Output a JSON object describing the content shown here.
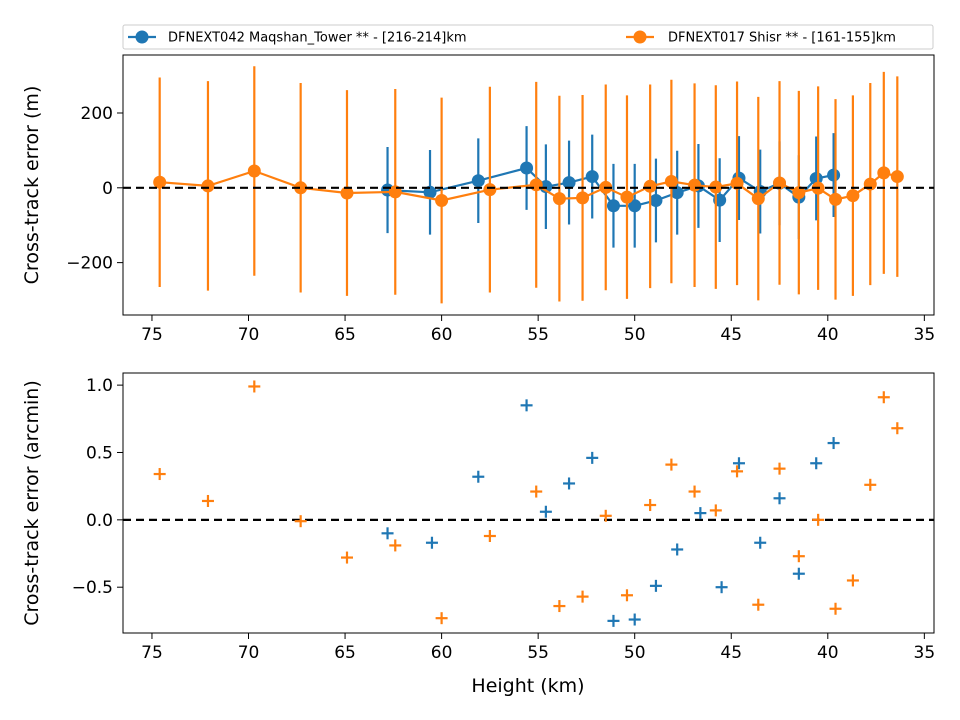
{
  "chart_data": [
    {
      "type": "line",
      "xlabel": "",
      "ylabel": "Cross-track error (m)",
      "xlim": [
        76.5,
        34.5
      ],
      "ylim": [
        -340,
        355
      ],
      "x_ticks": [
        75,
        70,
        65,
        60,
        55,
        50,
        45,
        40,
        35
      ],
      "y_ticks": [
        -200,
        0,
        200
      ],
      "y_tick_labels": [
        "−200",
        "0",
        "200"
      ],
      "reference_line": 0,
      "legend_position": "above",
      "series": [
        {
          "name": "DFNEXT042 Maqshan_Tower **  - [216-214]km",
          "color": "#1f77b4",
          "points": [
            {
              "x": 62.8,
              "y": -6,
              "err": 115
            },
            {
              "x": 60.6,
              "y": -12,
              "err": 113
            },
            {
              "x": 58.1,
              "y": 19,
              "err": 113
            },
            {
              "x": 55.6,
              "y": 53,
              "err": 112
            },
            {
              "x": 54.6,
              "y": 3,
              "err": 113
            },
            {
              "x": 53.4,
              "y": 14,
              "err": 112
            },
            {
              "x": 52.2,
              "y": 30,
              "err": 112
            },
            {
              "x": 51.1,
              "y": -48,
              "err": 112
            },
            {
              "x": 50.0,
              "y": -48,
              "err": 112
            },
            {
              "x": 48.9,
              "y": -34,
              "err": 112
            },
            {
              "x": 47.8,
              "y": -13,
              "err": 112
            },
            {
              "x": 46.7,
              "y": 5,
              "err": 112
            },
            {
              "x": 45.6,
              "y": -33,
              "err": 112
            },
            {
              "x": 44.6,
              "y": 26,
              "err": 112
            },
            {
              "x": 43.5,
              "y": -10,
              "err": 112
            },
            {
              "x": 42.5,
              "y": 12,
              "err": 112
            },
            {
              "x": 41.5,
              "y": -25,
              "err": 112
            },
            {
              "x": 40.6,
              "y": 25,
              "err": 112
            },
            {
              "x": 39.7,
              "y": 34,
              "err": 112
            }
          ]
        },
        {
          "name": "DFNEXT017 Shisr **  - [161-155]km",
          "color": "#ff7f0e",
          "points": [
            {
              "x": 74.6,
              "y": 15,
              "err": 280
            },
            {
              "x": 72.1,
              "y": 5,
              "err": 280
            },
            {
              "x": 69.7,
              "y": 45,
              "err": 280
            },
            {
              "x": 67.3,
              "y": 0,
              "err": 280
            },
            {
              "x": 64.9,
              "y": -14,
              "err": 275
            },
            {
              "x": 62.4,
              "y": -11,
              "err": 275
            },
            {
              "x": 60.0,
              "y": -34,
              "err": 275
            },
            {
              "x": 57.5,
              "y": -5,
              "err": 275
            },
            {
              "x": 55.1,
              "y": 8,
              "err": 275
            },
            {
              "x": 53.9,
              "y": -29,
              "err": 275
            },
            {
              "x": 52.7,
              "y": -27,
              "err": 275
            },
            {
              "x": 51.5,
              "y": 1,
              "err": 275
            },
            {
              "x": 50.4,
              "y": -25,
              "err": 272
            },
            {
              "x": 49.2,
              "y": 4,
              "err": 272
            },
            {
              "x": 48.1,
              "y": 17,
              "err": 272
            },
            {
              "x": 46.9,
              "y": 7,
              "err": 272
            },
            {
              "x": 45.8,
              "y": 2,
              "err": 272
            },
            {
              "x": 44.7,
              "y": 12,
              "err": 272
            },
            {
              "x": 43.6,
              "y": -29,
              "err": 272
            },
            {
              "x": 42.5,
              "y": 13,
              "err": 272
            },
            {
              "x": 41.5,
              "y": -13,
              "err": 272
            },
            {
              "x": 40.5,
              "y": -1,
              "err": 272
            },
            {
              "x": 39.6,
              "y": -31,
              "err": 268
            },
            {
              "x": 38.7,
              "y": -21,
              "err": 268
            },
            {
              "x": 37.8,
              "y": 10,
              "err": 270
            },
            {
              "x": 37.1,
              "y": 40,
              "err": 270
            },
            {
              "x": 36.4,
              "y": 30,
              "err": 268
            }
          ]
        }
      ]
    },
    {
      "type": "scatter",
      "xlabel": "Height (km)",
      "ylabel": "Cross-track error (arcmin)",
      "xlim": [
        76.5,
        34.5
      ],
      "ylim": [
        -0.84,
        1.09
      ],
      "x_ticks": [
        75,
        70,
        65,
        60,
        55,
        50,
        45,
        40,
        35
      ],
      "y_ticks": [
        -0.5,
        0.0,
        0.5,
        1.0
      ],
      "y_tick_labels": [
        "−0.5",
        "0.0",
        "0.5",
        "1.0"
      ],
      "reference_line": 0,
      "marker": "+",
      "series": [
        {
          "color": "#1f77b4",
          "points": [
            {
              "x": 62.8,
              "y": -0.1
            },
            {
              "x": 60.5,
              "y": -0.17
            },
            {
              "x": 58.1,
              "y": 0.32
            },
            {
              "x": 55.6,
              "y": 0.85
            },
            {
              "x": 54.6,
              "y": 0.06
            },
            {
              "x": 53.4,
              "y": 0.27
            },
            {
              "x": 52.2,
              "y": 0.46
            },
            {
              "x": 51.1,
              "y": -0.75
            },
            {
              "x": 50.0,
              "y": -0.74
            },
            {
              "x": 48.9,
              "y": -0.49
            },
            {
              "x": 47.8,
              "y": -0.22
            },
            {
              "x": 46.6,
              "y": 0.05
            },
            {
              "x": 45.5,
              "y": -0.5
            },
            {
              "x": 44.6,
              "y": 0.42
            },
            {
              "x": 43.5,
              "y": -0.17
            },
            {
              "x": 42.5,
              "y": 0.16
            },
            {
              "x": 41.5,
              "y": -0.4
            },
            {
              "x": 40.6,
              "y": 0.42
            },
            {
              "x": 39.7,
              "y": 0.57
            }
          ]
        },
        {
          "color": "#ff7f0e",
          "points": [
            {
              "x": 74.6,
              "y": 0.34
            },
            {
              "x": 72.1,
              "y": 0.14
            },
            {
              "x": 69.7,
              "y": 0.99
            },
            {
              "x": 67.3,
              "y": -0.01
            },
            {
              "x": 64.9,
              "y": -0.28
            },
            {
              "x": 62.4,
              "y": -0.19
            },
            {
              "x": 60.0,
              "y": -0.73
            },
            {
              "x": 57.5,
              "y": -0.12
            },
            {
              "x": 55.1,
              "y": 0.21
            },
            {
              "x": 53.9,
              "y": -0.64
            },
            {
              "x": 52.7,
              "y": -0.57
            },
            {
              "x": 51.5,
              "y": 0.03
            },
            {
              "x": 50.4,
              "y": -0.56
            },
            {
              "x": 49.2,
              "y": 0.11
            },
            {
              "x": 48.1,
              "y": 0.41
            },
            {
              "x": 46.9,
              "y": 0.21
            },
            {
              "x": 45.8,
              "y": 0.07
            },
            {
              "x": 44.7,
              "y": 0.36
            },
            {
              "x": 43.6,
              "y": -0.63
            },
            {
              "x": 42.5,
              "y": 0.38
            },
            {
              "x": 41.5,
              "y": -0.27
            },
            {
              "x": 40.5,
              "y": 0.0
            },
            {
              "x": 39.6,
              "y": -0.66
            },
            {
              "x": 38.7,
              "y": -0.45
            },
            {
              "x": 37.8,
              "y": 0.26
            },
            {
              "x": 37.1,
              "y": 0.91
            },
            {
              "x": 36.4,
              "y": 0.68
            }
          ]
        }
      ]
    }
  ]
}
